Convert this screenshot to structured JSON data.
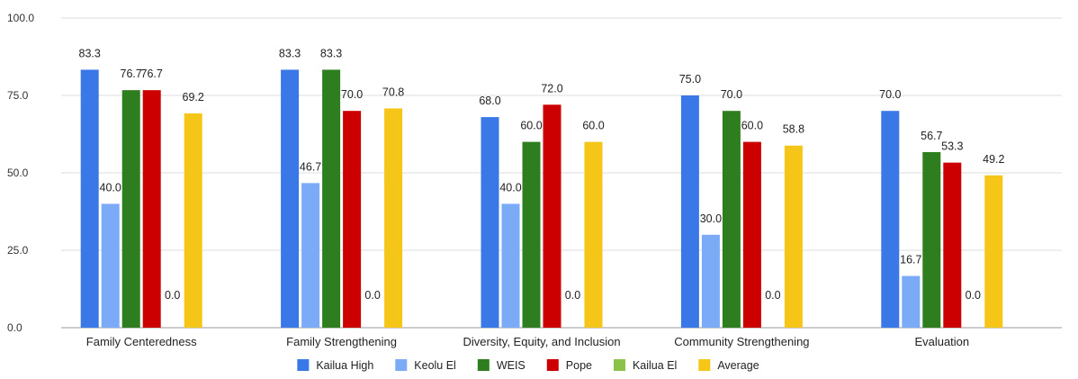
{
  "chart_data": {
    "type": "bar",
    "categories": [
      "Family Centeredness",
      "Family Strengthening",
      "Diversity, Equity, and Inclusion",
      "Community Strengthening",
      "Evaluation"
    ],
    "series": [
      {
        "name": "Kailua High",
        "color": "#3b78e7",
        "values": [
          83.3,
          83.3,
          68.0,
          75.0,
          70.0
        ],
        "labels": [
          "83.3",
          "83.3",
          "68.0",
          "75.0",
          "70.0"
        ]
      },
      {
        "name": "Keolu El",
        "color": "#7baaf7",
        "values": [
          40.0,
          46.7,
          40.0,
          30.0,
          16.7
        ],
        "labels": [
          "40.0",
          "46.7",
          "40.0",
          "30.0",
          "16.7"
        ]
      },
      {
        "name": "WEIS",
        "color": "#2e7d1f",
        "values": [
          76.7,
          83.3,
          60.0,
          70.0,
          56.7
        ],
        "labels": [
          "76.7",
          "83.3",
          "60.0",
          "70.0",
          "56.7"
        ]
      },
      {
        "name": "Pope",
        "color": "#cc0000",
        "values": [
          76.7,
          70.0,
          72.0,
          60.0,
          53.3
        ],
        "labels": [
          "76.7",
          "70.0",
          "72.0",
          "60.0",
          "53.3"
        ]
      },
      {
        "name": "Kailua El",
        "color": "#8bc34a",
        "values": [
          0.0,
          0.0,
          0.0,
          0.0,
          0.0
        ],
        "labels": [
          "0.0",
          "0.0",
          "0.0",
          "0.0",
          "0.0"
        ]
      },
      {
        "name": "Average",
        "color": "#f5c518",
        "values": [
          69.2,
          70.8,
          60.0,
          58.8,
          49.2
        ],
        "labels": [
          "69.2",
          "70.8",
          "60.0",
          "58.8",
          "49.2"
        ]
      }
    ],
    "yticks": [
      "0.0",
      "25.0",
      "50.0",
      "75.0",
      "100.0"
    ],
    "ylim": [
      0,
      100
    ],
    "grid": true,
    "legend": "bottom"
  }
}
